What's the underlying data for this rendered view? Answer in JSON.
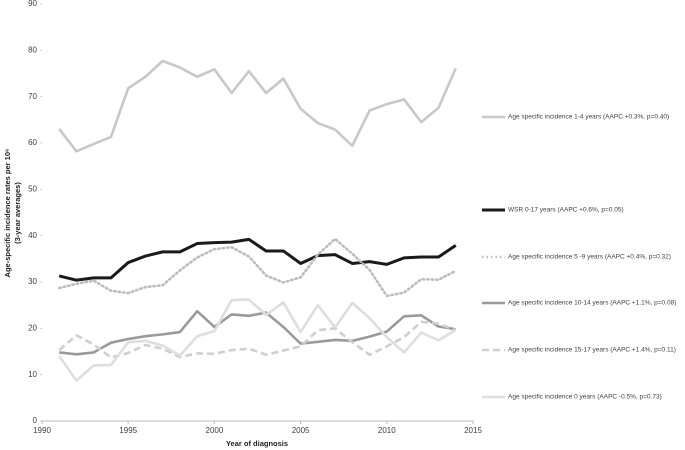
{
  "chart_data": {
    "type": "line",
    "x_label": "Year of diagnosis",
    "y_label": [
      "Age-specific incidence rates per 10⁶",
      "(3-year averages)"
    ],
    "x": [
      1991,
      1992,
      1993,
      1994,
      1995,
      1996,
      1997,
      1998,
      1999,
      2000,
      2001,
      2002,
      2003,
      2004,
      2005,
      2006,
      2007,
      2008,
      2009,
      2010,
      2011,
      2012,
      2013,
      2014
    ],
    "xlim": [
      1990,
      2015
    ],
    "xticks": [
      1990,
      1995,
      2000,
      2005,
      2010,
      2015
    ],
    "ylim": [
      0,
      90
    ],
    "yticks": [
      0,
      10,
      20,
      30,
      40,
      50,
      60,
      70,
      80,
      90
    ],
    "series": [
      {
        "name": "Age specific incidence 1-4 years (AAPC +0.3%, p=0.40)",
        "color": "#c8c8c8",
        "dash": "solid",
        "values": [
          63,
          58.2,
          59.8,
          61.3,
          71.8,
          74.3,
          77.7,
          76.3,
          74.3,
          75.9,
          70.8,
          75.5,
          70.8,
          73.9,
          67.4,
          64.3,
          62.9,
          59.4,
          67,
          68.4,
          69.4,
          64.5,
          67.6,
          76.1
        ]
      },
      {
        "name": "WSR 0-17 years (AAPC +0.6%, p=0.05)",
        "color": "#1a1a1a",
        "dash": "solid",
        "values": [
          31.3,
          30.4,
          30.9,
          30.9,
          34.2,
          35.6,
          36.5,
          36.5,
          38.3,
          38.5,
          38.6,
          39.2,
          36.7,
          36.7,
          34,
          35.7,
          35.9,
          34,
          34.4,
          33.8,
          35.2,
          35.4,
          35.4,
          37.9
        ]
      },
      {
        "name": "Age specific incidence 5 -9  years (AAPC +0.4%, p=0.32)",
        "color": "#bdbdbd",
        "dash": "dotted",
        "values": [
          28.7,
          29.6,
          30.3,
          28.1,
          27.6,
          28.9,
          29.3,
          32.5,
          35.3,
          37.1,
          37.5,
          35.5,
          31.4,
          29.9,
          31,
          35.9,
          39.3,
          36.1,
          32.6,
          27,
          27.7,
          30.6,
          30.5,
          32.4
        ]
      },
      {
        "name": "Age specific incidence 10-14 years (AAPC +1.1%, p=0.08)",
        "color": "#9a9a9a",
        "dash": "solid",
        "values": [
          14.8,
          14.4,
          14.8,
          16.9,
          17.7,
          18.3,
          18.7,
          19.2,
          23.7,
          20.3,
          23,
          22.7,
          23.4,
          20.3,
          16.7,
          17.1,
          17.5,
          17.3,
          18.2,
          19.3,
          22.6,
          22.8,
          20.4,
          19.8
        ]
      },
      {
        "name": "Age specific incidence 15-17 years (AAPC +1.4%, p=0.11)",
        "color": "#cfcfcf",
        "dash": "dashed",
        "values": [
          15.3,
          18.5,
          16.5,
          13.7,
          14.7,
          16.4,
          15.6,
          13.8,
          14.6,
          14.5,
          15.3,
          15.6,
          14.3,
          15.2,
          16.1,
          19.6,
          20,
          17,
          14.3,
          16.1,
          18.1,
          21.4,
          21,
          19.6
        ]
      },
      {
        "name": "Age specific incidence 0    years (AAPC -0.5%, p=0.73)",
        "color": "#dedede",
        "dash": "solid",
        "values": [
          14,
          8.7,
          12,
          12.1,
          17,
          17.3,
          16.3,
          14.1,
          18.3,
          19.4,
          26.1,
          26.2,
          22.9,
          25.6,
          19.2,
          25,
          20.2,
          25.5,
          22.2,
          18.1,
          14.8,
          19.1,
          17.4,
          19.7
        ]
      }
    ]
  }
}
